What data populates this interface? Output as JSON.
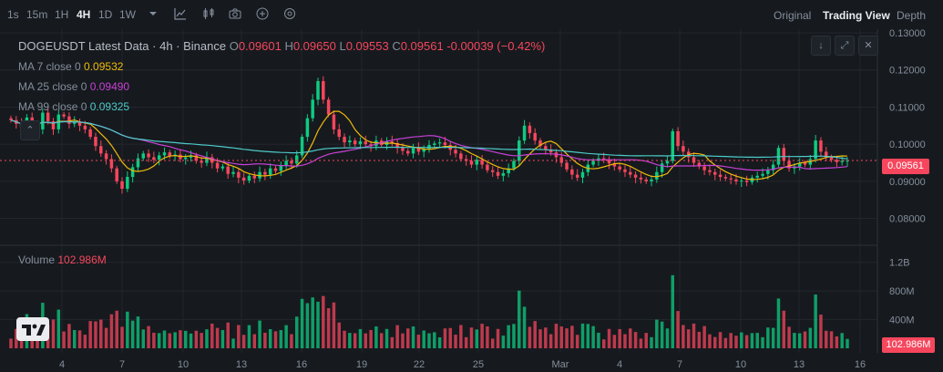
{
  "toolbar": {
    "timeframes": [
      "1s",
      "15m",
      "1H",
      "4H",
      "1D",
      "1W"
    ],
    "active_timeframe": "4H",
    "views": [
      "Original",
      "Trading View",
      "Depth"
    ],
    "active_view": "Trading View"
  },
  "legend": {
    "title": "DOGEUSDT Latest Data · 4h · Binance",
    "open_label": "O",
    "open": "0.09601",
    "high_label": "H",
    "high": "0.09650",
    "low_label": "L",
    "low": "0.09553",
    "close_label": "C",
    "close": "0.09561",
    "change": "-0.00039 (−0.42%)",
    "ma7_label": "MA 7 close 0",
    "ma7": "0.09532",
    "ma25_label": "MA 25 close 0",
    "ma25": "0.09490",
    "ma99_label": "MA 99 close 0",
    "ma99": "0.09325",
    "volume_label": "Volume",
    "volume": "102.986M"
  },
  "colors": {
    "up": "#0ecb81",
    "down": "#f6465d",
    "ma7": "#f0b90b",
    "ma25": "#c740d6",
    "ma99": "#4ec9c9",
    "grid": "#23272e",
    "axis_text": "#848e9c"
  },
  "chart_data": {
    "type": "candlestick",
    "price_axis": {
      "ticks": [
        "0.13000",
        "0.12000",
        "0.11000",
        "0.10000",
        "0.09000",
        "0.08000"
      ],
      "last_price": "0.09561"
    },
    "volume_axis": {
      "ticks": [
        "1.2B",
        "800M",
        "400M"
      ],
      "last_volume": "102.986M"
    },
    "x_ticks": [
      "4",
      "7",
      "10",
      "13",
      "16",
      "19",
      "22",
      "25",
      "Mar",
      "4",
      "7",
      "10",
      "13",
      "16"
    ],
    "closes": [
      0.1065,
      0.1055,
      0.1045,
      0.1072,
      0.105,
      0.104,
      0.1085,
      0.1062,
      0.104,
      0.108,
      0.1075,
      0.1055,
      0.106,
      0.105,
      0.104,
      0.102,
      0.0995,
      0.0975,
      0.096,
      0.0935,
      0.09,
      0.088,
      0.0912,
      0.0938,
      0.0962,
      0.0975,
      0.0965,
      0.0958,
      0.097,
      0.0978,
      0.0968,
      0.0972,
      0.096,
      0.0964,
      0.097,
      0.0955,
      0.095,
      0.0965,
      0.095,
      0.0935,
      0.094,
      0.092,
      0.0925,
      0.091,
      0.0902,
      0.0915,
      0.0908,
      0.0925,
      0.0918,
      0.0935,
      0.0928,
      0.0942,
      0.0955,
      0.0948,
      0.097,
      0.102,
      0.107,
      0.112,
      0.117,
      0.112,
      0.108,
      0.104,
      0.102,
      0.1005,
      0.101,
      0.1,
      0.1008,
      0.1,
      0.0995,
      0.101,
      0.0998,
      0.1008,
      0.1003,
      0.099,
      0.0982,
      0.0975,
      0.099,
      0.098,
      0.0988,
      0.0998,
      0.1002,
      0.1005,
      0.0998,
      0.0985,
      0.0975,
      0.096,
      0.0955,
      0.0945,
      0.0958,
      0.0945,
      0.093,
      0.0925,
      0.0915,
      0.0922,
      0.0935,
      0.0955,
      0.101,
      0.105,
      0.103,
      0.101,
      0.0995,
      0.0985,
      0.0978,
      0.0965,
      0.095,
      0.0932,
      0.0918,
      0.091,
      0.0925,
      0.0945,
      0.0955,
      0.0962,
      0.0958,
      0.0948,
      0.094,
      0.0932,
      0.0925,
      0.0918,
      0.091,
      0.0905,
      0.09,
      0.0905,
      0.0925,
      0.0948,
      0.0955,
      0.1035,
      0.0995,
      0.098,
      0.0965,
      0.095,
      0.094,
      0.093,
      0.0925,
      0.0918,
      0.0912,
      0.0908,
      0.0905,
      0.09,
      0.0902,
      0.0898,
      0.091,
      0.0915,
      0.092,
      0.093,
      0.0945,
      0.099,
      0.0955,
      0.0935,
      0.094,
      0.095,
      0.0945,
      0.096,
      0.101,
      0.098,
      0.0965,
      0.0958,
      0.0952,
      0.0955,
      0.0956
    ]
  }
}
